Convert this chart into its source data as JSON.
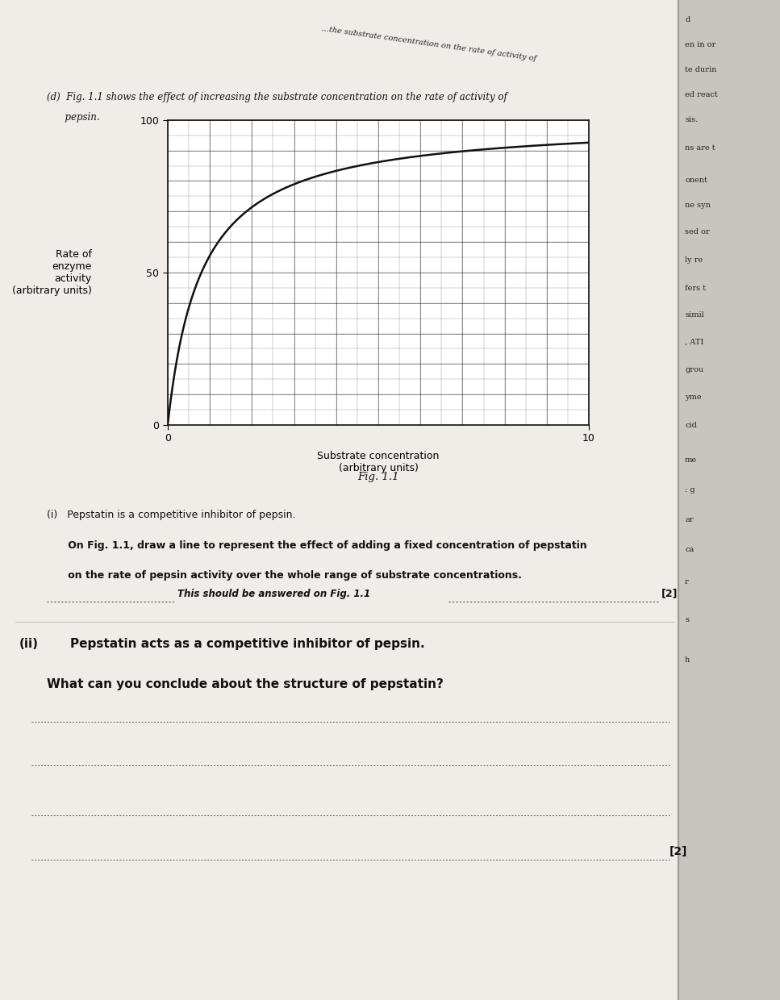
{
  "page_bg": "#e8e5e0",
  "left_page_bg": "#f0ede8",
  "right_margin_bg": "#c8c4be",
  "graph_bg": "#ffffff",
  "grid_color": "#444444",
  "line_color": "#111111",
  "text_color": "#111111",
  "fig_width": 9.67,
  "fig_height": 12.4,
  "xmax": 10,
  "ymax": 100,
  "Vmax": 100,
  "Km": 0.8,
  "xlabel": "Substrate concentration\n(arbitrary units)",
  "ylabel": "Rate of\nenzyme\nactivity\n(arbitrary units)",
  "fig_caption": "Fig. 1.1",
  "part_d_line1": "(d)  Fig. 1.1 shows the effect of increasing the substrate concentration on the rate of activity of",
  "part_d_line2": "      pepsin.",
  "part_i_header": "(i)   Pepstatin is a competitive inhibitor of pepsin.",
  "part_i_body1": "      On Fig. 1.1, draw a line to represent the effect of adding a fixed concentration of pepstatin",
  "part_i_body2": "      on the rate of pepsin activity over the whole range of substrate concentrations.",
  "part_i_italic": "This should be answered on Fig. 1.1",
  "part_ii_roman": "(ii)",
  "part_ii_header": "Pepstatin acts as a competitive inhibitor of pepsin.",
  "part_ii_question": "What can you conclude about the structure of pepstatin?",
  "mark2": "[2]",
  "dotted_color": "#555555",
  "right_texts": [
    "d",
    "en in or",
    "te durin",
    "ed react",
    "sis.",
    "ns are t",
    "onent",
    "ne syn",
    "sed or",
    "ly re",
    "fers t",
    "simil",
    ", ATI",
    "grou",
    "yme",
    "cid",
    "me",
    ": g",
    "ar",
    "ca",
    "r",
    "s",
    "h"
  ]
}
